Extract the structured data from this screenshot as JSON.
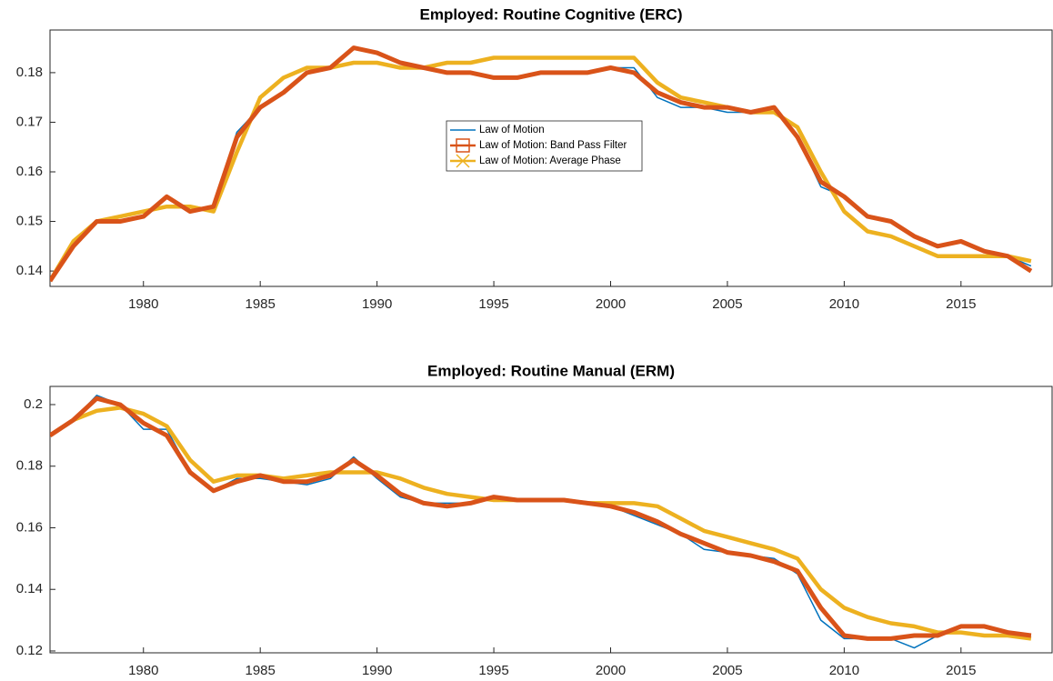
{
  "chart_data": [
    {
      "type": "line",
      "title": "Employed: Routine Cognitive (ERC)",
      "legend": "center",
      "x": [
        1976,
        1977,
        1978,
        1979,
        1980,
        1981,
        1982,
        1983,
        1984,
        1985,
        1986,
        1987,
        1988,
        1989,
        1990,
        1991,
        1992,
        1993,
        1994,
        1995,
        1996,
        1997,
        1998,
        1999,
        2000,
        2001,
        2002,
        2003,
        2004,
        2005,
        2006,
        2007,
        2008,
        2009,
        2010,
        2011,
        2012,
        2013,
        2014,
        2015,
        2016,
        2017,
        2018
      ],
      "xlim": [
        1976,
        2018.9
      ],
      "xticks": [
        1980,
        1985,
        1990,
        1995,
        2000,
        2005,
        2010,
        2015
      ],
      "ylim": [
        0.1369,
        0.1886
      ],
      "yticks": [
        0.14,
        0.15,
        0.16,
        0.17,
        0.18
      ],
      "series": [
        {
          "name": "Law of Motion",
          "color": "#0072bd",
          "values": [
            0.138,
            0.145,
            0.15,
            0.15,
            0.151,
            0.155,
            0.152,
            0.153,
            0.168,
            0.173,
            0.176,
            0.18,
            0.181,
            0.185,
            0.184,
            0.182,
            0.181,
            0.18,
            0.18,
            0.179,
            0.179,
            0.18,
            0.18,
            0.18,
            0.181,
            0.181,
            0.175,
            0.173,
            0.173,
            0.172,
            0.172,
            0.173,
            0.167,
            0.157,
            0.155,
            0.151,
            0.15,
            0.147,
            0.145,
            0.146,
            0.144,
            0.143,
            0.141
          ]
        },
        {
          "name": "Law of Motion: Band Pass Filter",
          "color": "#d95319",
          "values": [
            0.138,
            0.145,
            0.15,
            0.15,
            0.151,
            0.155,
            0.152,
            0.153,
            0.167,
            0.173,
            0.176,
            0.18,
            0.181,
            0.185,
            0.184,
            0.182,
            0.181,
            0.18,
            0.18,
            0.179,
            0.179,
            0.18,
            0.18,
            0.18,
            0.181,
            0.18,
            0.176,
            0.174,
            0.173,
            0.173,
            0.172,
            0.173,
            0.167,
            0.158,
            0.155,
            0.151,
            0.15,
            0.147,
            0.145,
            0.146,
            0.144,
            0.143,
            0.14
          ]
        },
        {
          "name": "Law of Motion: Average Phase",
          "color": "#edb120",
          "values": [
            0.138,
            0.146,
            0.15,
            0.151,
            0.152,
            0.153,
            0.153,
            0.152,
            0.164,
            0.175,
            0.179,
            0.181,
            0.181,
            0.182,
            0.182,
            0.181,
            0.181,
            0.182,
            0.182,
            0.183,
            0.183,
            0.183,
            0.183,
            0.183,
            0.183,
            0.183,
            0.178,
            0.175,
            0.174,
            0.173,
            0.172,
            0.172,
            0.169,
            0.16,
            0.152,
            0.148,
            0.147,
            0.145,
            0.143,
            0.143,
            0.143,
            0.143,
            0.142
          ]
        }
      ]
    },
    {
      "type": "line",
      "title": "Employed: Routine Manual (ERM)",
      "x": [
        1976,
        1977,
        1978,
        1979,
        1980,
        1981,
        1982,
        1983,
        1984,
        1985,
        1986,
        1987,
        1988,
        1989,
        1990,
        1991,
        1992,
        1993,
        1994,
        1995,
        1996,
        1997,
        1998,
        1999,
        2000,
        2001,
        2002,
        2003,
        2004,
        2005,
        2006,
        2007,
        2008,
        2009,
        2010,
        2011,
        2012,
        2013,
        2014,
        2015,
        2016,
        2017,
        2018
      ],
      "xlim": [
        1976,
        2018.9
      ],
      "xticks": [
        1980,
        1985,
        1990,
        1995,
        2000,
        2005,
        2010,
        2015
      ],
      "ylim": [
        0.1194,
        0.2059
      ],
      "yticks": [
        0.12,
        0.14,
        0.16,
        0.18,
        0.2
      ],
      "series": [
        {
          "color": "#0072bd",
          "values": [
            0.19,
            0.195,
            0.203,
            0.2,
            0.192,
            0.192,
            0.178,
            0.172,
            0.176,
            0.176,
            0.175,
            0.174,
            0.176,
            0.183,
            0.176,
            0.17,
            0.168,
            0.168,
            0.168,
            0.17,
            0.169,
            0.169,
            0.169,
            0.168,
            0.167,
            0.164,
            0.161,
            0.158,
            0.153,
            0.152,
            0.151,
            0.15,
            0.145,
            0.13,
            0.124,
            0.124,
            0.124,
            0.121,
            0.125,
            0.128,
            0.128,
            0.126,
            0.125
          ]
        },
        {
          "color": "#d95319",
          "values": [
            0.19,
            0.195,
            0.202,
            0.2,
            0.194,
            0.19,
            0.178,
            0.172,
            0.175,
            0.177,
            0.175,
            0.175,
            0.177,
            0.182,
            0.177,
            0.171,
            0.168,
            0.167,
            0.168,
            0.17,
            0.169,
            0.169,
            0.169,
            0.168,
            0.167,
            0.165,
            0.162,
            0.158,
            0.155,
            0.152,
            0.151,
            0.149,
            0.146,
            0.134,
            0.125,
            0.124,
            0.124,
            0.125,
            0.125,
            0.128,
            0.128,
            0.126,
            0.125
          ]
        },
        {
          "color": "#edb120",
          "values": [
            0.19,
            0.195,
            0.198,
            0.199,
            0.197,
            0.193,
            0.182,
            0.175,
            0.177,
            0.177,
            0.176,
            0.177,
            0.178,
            0.178,
            0.178,
            0.176,
            0.173,
            0.171,
            0.17,
            0.169,
            0.169,
            0.169,
            0.169,
            0.168,
            0.168,
            0.168,
            0.167,
            0.163,
            0.159,
            0.157,
            0.155,
            0.153,
            0.15,
            0.14,
            0.134,
            0.131,
            0.129,
            0.128,
            0.126,
            0.126,
            0.125,
            0.125,
            0.124
          ]
        }
      ]
    }
  ]
}
